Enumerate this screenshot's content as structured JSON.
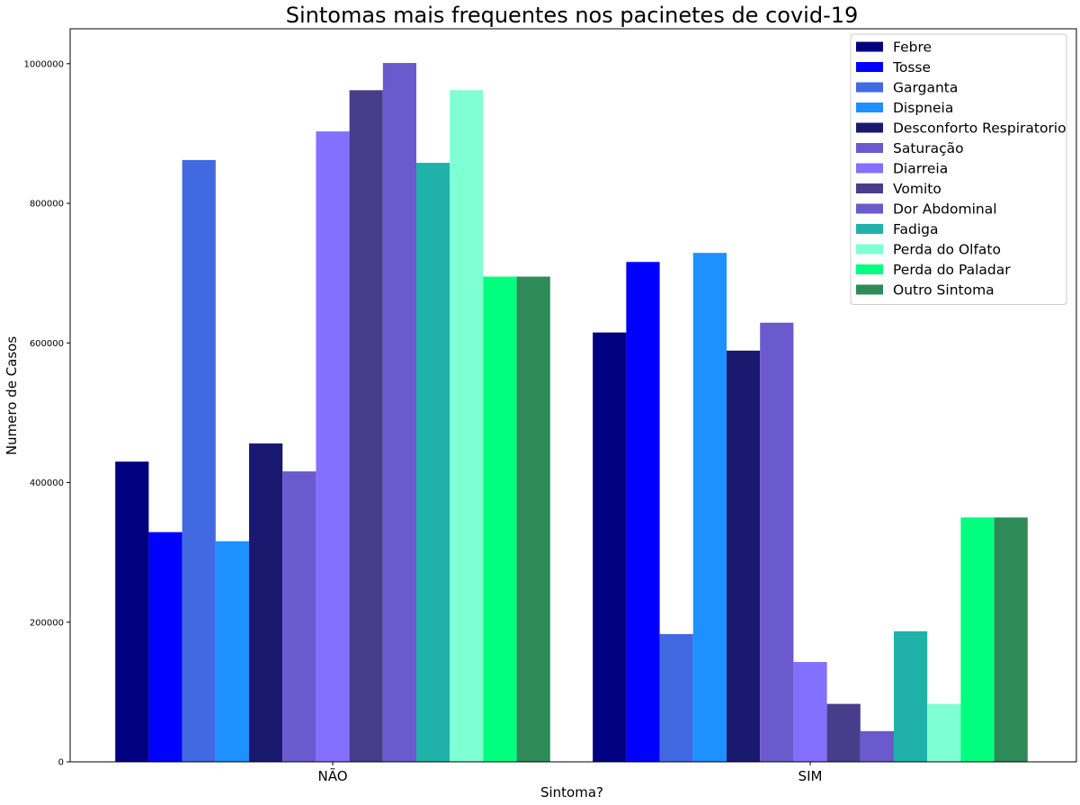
{
  "chart_data": {
    "type": "bar",
    "title": "Sintomas mais frequentes nos pacinetes de covid-19",
    "xlabel": "Sintoma?",
    "ylabel": "Numero de Casos",
    "categories": [
      "NÃO",
      "SIM"
    ],
    "ylim": [
      0,
      1050000
    ],
    "yticks": [
      0,
      200000,
      400000,
      600000,
      800000,
      1000000
    ],
    "ytick_labels": [
      "0",
      "200000",
      "400000",
      "600000",
      "800000",
      "1000000"
    ],
    "grid": false,
    "legend_position": "top-right",
    "series": [
      {
        "name": "Febre",
        "color": "#000080",
        "values": [
          430000,
          615000
        ]
      },
      {
        "name": "Tosse",
        "color": "#0000ff",
        "values": [
          329000,
          716000
        ]
      },
      {
        "name": "Garganta",
        "color": "#4169e1",
        "values": [
          862000,
          183000
        ]
      },
      {
        "name": "Dispneia",
        "color": "#1e90ff",
        "values": [
          316000,
          729000
        ]
      },
      {
        "name": "Desconforto Respiratorio",
        "color": "#191970",
        "values": [
          456000,
          589000
        ]
      },
      {
        "name": "Saturação",
        "color": "#6a5acd",
        "values": [
          416000,
          629000
        ]
      },
      {
        "name": "Diarreia",
        "color": "#8470ff",
        "values": [
          903000,
          143000
        ]
      },
      {
        "name": "Vomito",
        "color": "#483d8b",
        "values": [
          962000,
          83000
        ]
      },
      {
        "name": "Dor Abdominal",
        "color": "#6a5acd",
        "values": [
          1001000,
          44000
        ]
      },
      {
        "name": "Fadiga",
        "color": "#20b2aa",
        "values": [
          858000,
          187000
        ]
      },
      {
        "name": "Perda do Olfato",
        "color": "#7fffd4",
        "values": [
          962000,
          83000
        ]
      },
      {
        "name": "Perda do Paladar",
        "color": "#00ff7f",
        "values": [
          695000,
          350000
        ]
      },
      {
        "name": "Outro Sintoma",
        "color": "#2e8b57",
        "values": [
          695000,
          350000
        ]
      }
    ]
  }
}
